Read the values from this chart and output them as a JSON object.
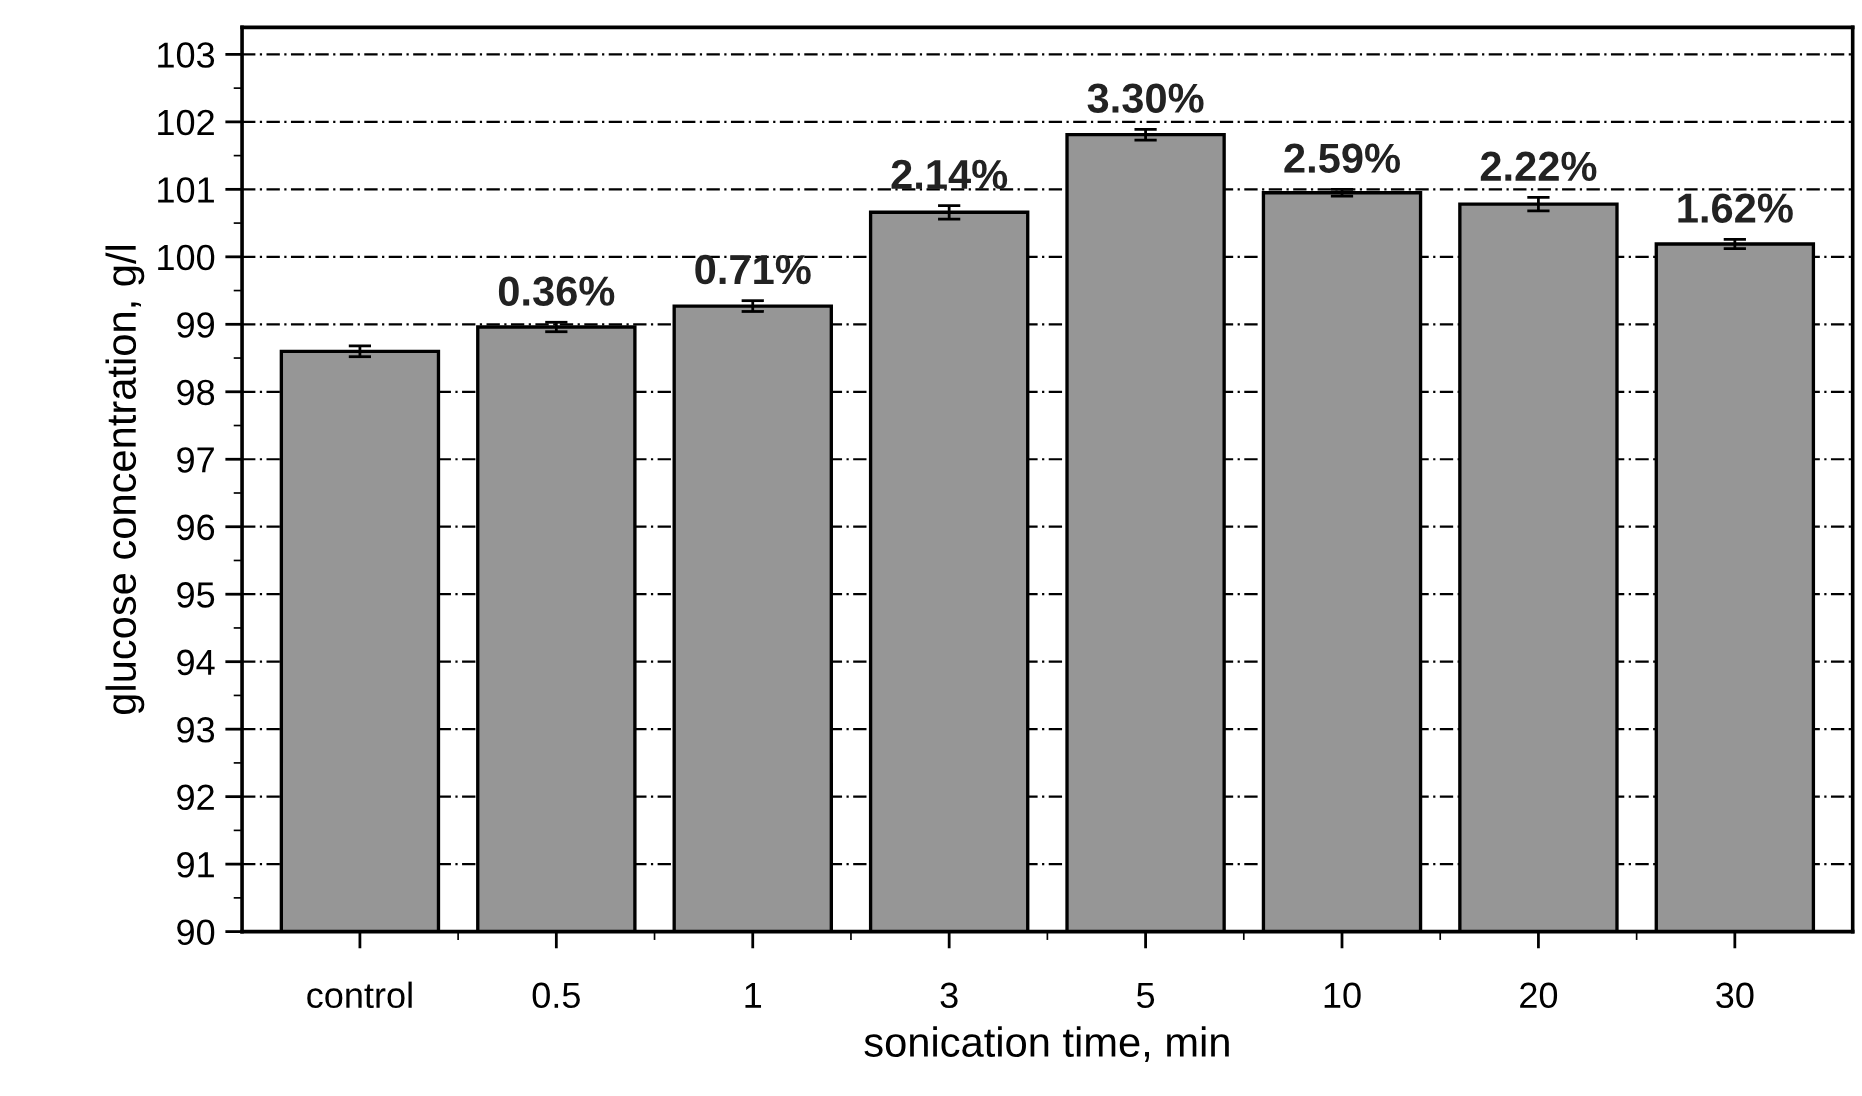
{
  "chart_data": {
    "type": "bar",
    "xlabel": "sonication time, min",
    "ylabel": "glucose concentration, g/l",
    "categories": [
      "control",
      "0.5",
      "1",
      "3",
      "5",
      "10",
      "20",
      "30"
    ],
    "values": [
      98.6,
      98.96,
      99.27,
      100.66,
      101.81,
      100.95,
      100.78,
      100.19
    ],
    "errors": [
      0.08,
      0.07,
      0.08,
      0.1,
      0.08,
      0.05,
      0.1,
      0.07
    ],
    "annotations": [
      {
        "text": "0.36%",
        "x": "0.5",
        "y": 98.96
      },
      {
        "text": "0.71%",
        "x": "1",
        "y": 99.27
      },
      {
        "text": "2.14%",
        "x": "3",
        "y": 100.66
      },
      {
        "text": "3.30%",
        "x": "5",
        "y": 101.81
      },
      {
        "text": "2.59%",
        "x": "10",
        "y": 100.95
      },
      {
        "text": "2.22%",
        "x": "20",
        "y": 100.78
      },
      {
        "text": "1.62%",
        "x": "30",
        "y": 100.19
      }
    ],
    "color": "#969696",
    "ylim": [
      90,
      103.4
    ],
    "yticks": [
      90,
      91,
      92,
      93,
      94,
      95,
      96,
      97,
      98,
      99,
      100,
      101,
      102,
      103
    ],
    "grid": "y"
  }
}
